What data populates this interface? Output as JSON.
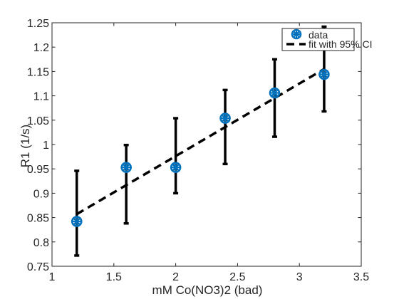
{
  "chart_data": {
    "type": "scatter",
    "title": "",
    "xlabel": "mM Co(NO3)2 (bad)",
    "ylabel": "R1 (1/s)",
    "xlim": [
      1,
      3.5
    ],
    "ylim": [
      0.75,
      1.25
    ],
    "xticks": [
      1,
      1.5,
      2,
      2.5,
      3,
      3.5
    ],
    "yticks": [
      0.75,
      0.8,
      0.85,
      0.9,
      0.95,
      1,
      1.05,
      1.1,
      1.15,
      1.2,
      1.25
    ],
    "xtick_labels": [
      "1",
      "1.5",
      "2",
      "2.5",
      "3",
      "3.5"
    ],
    "ytick_labels": [
      "0.75",
      "0.8",
      "0.85",
      "0.9",
      "0.95",
      "1",
      "1.05",
      "1.1",
      "1.15",
      "1.2",
      "1.25"
    ],
    "grid": false,
    "legend": {
      "location": "top-right",
      "entries": [
        {
          "label": "data",
          "marker": "asterisk-circle",
          "color": "#0072BD"
        },
        {
          "label": "fit with 95% CI",
          "line": "dashed",
          "color": "#000000"
        }
      ]
    },
    "series": [
      {
        "name": "data",
        "color": "#0072BD",
        "x": [
          1.2,
          1.6,
          2.0,
          2.4,
          2.8,
          3.2
        ],
        "y": [
          0.842,
          0.953,
          0.953,
          1.054,
          1.106,
          1.144
        ]
      },
      {
        "name": "fit with 95% CI",
        "color": "#000000",
        "line_style": "dashed",
        "x": [
          1.2,
          3.2
        ],
        "y": [
          0.857,
          1.155
        ],
        "errorbars": {
          "x": [
            1.2,
            1.6,
            2.0,
            2.4,
            2.8,
            3.2
          ],
          "lower": [
            0.772,
            0.838,
            0.9,
            0.96,
            1.016,
            1.068
          ],
          "upper": [
            0.946,
            0.999,
            1.054,
            1.112,
            1.175,
            1.242
          ]
        }
      }
    ]
  }
}
